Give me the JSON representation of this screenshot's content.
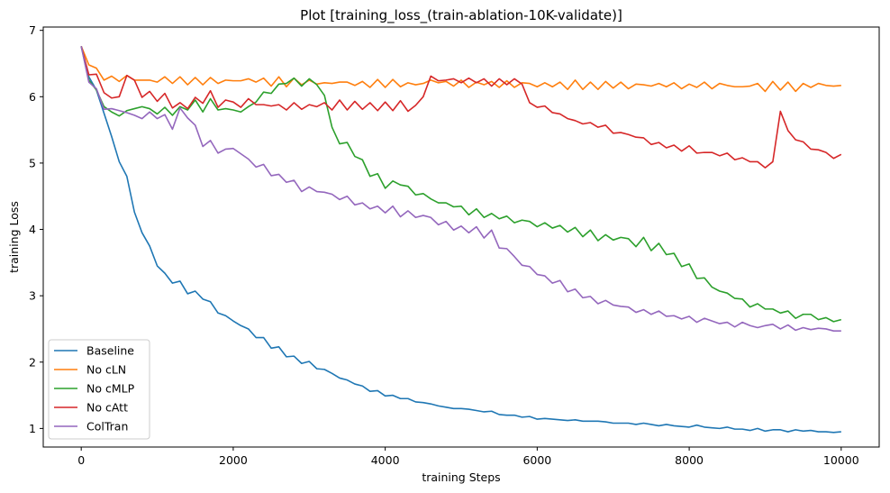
{
  "chart_data": {
    "type": "line",
    "title": "Plot [training_loss_(train-ablation-10K-validate)]",
    "xlabel": "training Steps",
    "ylabel": "training Loss",
    "xlim": [
      -500,
      10500
    ],
    "ylim": [
      0.72,
      7.05
    ],
    "xticks": [
      0,
      2000,
      4000,
      6000,
      8000,
      10000
    ],
    "yticks": [
      1,
      2,
      3,
      4,
      5,
      6,
      7
    ],
    "grid": false,
    "legend": "lower-left",
    "x": [
      0,
      100,
      200,
      300,
      400,
      500,
      600,
      700,
      800,
      900,
      1000,
      1100,
      1200,
      1300,
      1400,
      1500,
      1600,
      1700,
      1800,
      1900,
      2000,
      2100,
      2200,
      2300,
      2400,
      2500,
      2600,
      2700,
      2800,
      2900,
      3000,
      3100,
      3200,
      3300,
      3400,
      3500,
      3600,
      3700,
      3800,
      3900,
      4000,
      4100,
      4200,
      4300,
      4400,
      4500,
      4600,
      4700,
      4800,
      4900,
      5000,
      5100,
      5200,
      5300,
      5400,
      5500,
      5600,
      5700,
      5800,
      5900,
      6000,
      6100,
      6200,
      6300,
      6400,
      6500,
      6600,
      6700,
      6800,
      6900,
      7000,
      7100,
      7200,
      7300,
      7400,
      7500,
      7600,
      7700,
      7800,
      7900,
      8000,
      8100,
      8200,
      8300,
      8400,
      8500,
      8600,
      8700,
      8800,
      8900,
      9000,
      9100,
      9200,
      9300,
      9400,
      9500,
      9600,
      9700,
      9800,
      9900,
      10000
    ],
    "series": [
      {
        "name": "Baseline",
        "color": "#1f77b4",
        "values": [
          6.76,
          6.3,
          6.1,
          5.75,
          5.4,
          5.02,
          4.8,
          4.26,
          3.95,
          3.75,
          3.45,
          3.34,
          3.19,
          3.22,
          3.03,
          3.07,
          2.95,
          2.91,
          2.74,
          2.7,
          2.62,
          2.55,
          2.5,
          2.37,
          2.37,
          2.21,
          2.23,
          2.08,
          2.09,
          1.98,
          2.01,
          1.9,
          1.89,
          1.83,
          1.76,
          1.73,
          1.67,
          1.64,
          1.56,
          1.57,
          1.49,
          1.5,
          1.45,
          1.45,
          1.4,
          1.39,
          1.37,
          1.34,
          1.32,
          1.3,
          1.3,
          1.29,
          1.27,
          1.25,
          1.26,
          1.21,
          1.2,
          1.2,
          1.17,
          1.18,
          1.14,
          1.15,
          1.14,
          1.13,
          1.12,
          1.13,
          1.11,
          1.11,
          1.11,
          1.1,
          1.08,
          1.08,
          1.08,
          1.06,
          1.08,
          1.06,
          1.04,
          1.06,
          1.04,
          1.03,
          1.02,
          1.05,
          1.02,
          1.01,
          1.0,
          1.02,
          0.99,
          0.99,
          0.97,
          1.0,
          0.96,
          0.98,
          0.98,
          0.95,
          0.98,
          0.96,
          0.97,
          0.95,
          0.95,
          0.94,
          0.95
        ]
      },
      {
        "name": "No cLN",
        "color": "#ff7f0e",
        "values": [
          6.76,
          6.48,
          6.43,
          6.25,
          6.31,
          6.23,
          6.32,
          6.25,
          6.25,
          6.25,
          6.22,
          6.3,
          6.2,
          6.3,
          6.18,
          6.29,
          6.18,
          6.29,
          6.2,
          6.25,
          6.24,
          6.24,
          6.27,
          6.22,
          6.28,
          6.16,
          6.3,
          6.15,
          6.28,
          6.18,
          6.25,
          6.19,
          6.21,
          6.2,
          6.22,
          6.22,
          6.17,
          6.23,
          6.14,
          6.26,
          6.14,
          6.26,
          6.15,
          6.21,
          6.18,
          6.2,
          6.25,
          6.21,
          6.23,
          6.16,
          6.25,
          6.14,
          6.22,
          6.18,
          6.23,
          6.14,
          6.24,
          6.14,
          6.21,
          6.2,
          6.15,
          6.21,
          6.15,
          6.22,
          6.11,
          6.25,
          6.11,
          6.22,
          6.11,
          6.23,
          6.13,
          6.22,
          6.12,
          6.19,
          6.18,
          6.16,
          6.2,
          6.15,
          6.21,
          6.12,
          6.19,
          6.14,
          6.22,
          6.12,
          6.2,
          6.17,
          6.15,
          6.15,
          6.16,
          6.2,
          6.08,
          6.23,
          6.1,
          6.22,
          6.08,
          6.2,
          6.14,
          6.2,
          6.17,
          6.16,
          6.17
        ]
      },
      {
        "name": "No cMLP",
        "color": "#2ca02c",
        "values": [
          6.76,
          6.25,
          6.1,
          5.85,
          5.77,
          5.71,
          5.79,
          5.82,
          5.85,
          5.82,
          5.74,
          5.84,
          5.72,
          5.85,
          5.8,
          5.95,
          5.77,
          5.97,
          5.8,
          5.82,
          5.8,
          5.77,
          5.85,
          5.92,
          6.07,
          6.05,
          6.19,
          6.2,
          6.28,
          6.16,
          6.27,
          6.18,
          6.02,
          5.54,
          5.29,
          5.31,
          5.1,
          5.05,
          4.8,
          4.84,
          4.62,
          4.73,
          4.67,
          4.65,
          4.52,
          4.54,
          4.46,
          4.4,
          4.4,
          4.34,
          4.35,
          4.22,
          4.31,
          4.18,
          4.24,
          4.16,
          4.2,
          4.1,
          4.14,
          4.12,
          4.04,
          4.1,
          4.02,
          4.06,
          3.96,
          4.03,
          3.89,
          3.99,
          3.83,
          3.92,
          3.84,
          3.88,
          3.86,
          3.74,
          3.88,
          3.68,
          3.79,
          3.62,
          3.64,
          3.44,
          3.48,
          3.26,
          3.27,
          3.13,
          3.07,
          3.04,
          2.96,
          2.95,
          2.83,
          2.88,
          2.8,
          2.8,
          2.74,
          2.77,
          2.66,
          2.72,
          2.72,
          2.64,
          2.67,
          2.61,
          2.64
        ]
      },
      {
        "name": "No cAtt",
        "color": "#d62728",
        "values": [
          6.76,
          6.33,
          6.34,
          6.06,
          5.98,
          6.0,
          6.32,
          6.25,
          5.99,
          6.08,
          5.93,
          6.05,
          5.83,
          5.91,
          5.82,
          5.99,
          5.9,
          6.09,
          5.84,
          5.95,
          5.92,
          5.84,
          5.97,
          5.88,
          5.88,
          5.86,
          5.88,
          5.8,
          5.91,
          5.81,
          5.88,
          5.85,
          5.91,
          5.8,
          5.95,
          5.8,
          5.93,
          5.81,
          5.91,
          5.79,
          5.92,
          5.79,
          5.94,
          5.78,
          5.87,
          6.0,
          6.31,
          6.24,
          6.25,
          6.27,
          6.21,
          6.28,
          6.21,
          6.27,
          6.16,
          6.27,
          6.18,
          6.27,
          6.19,
          5.91,
          5.84,
          5.86,
          5.76,
          5.74,
          5.67,
          5.64,
          5.59,
          5.61,
          5.54,
          5.57,
          5.45,
          5.46,
          5.43,
          5.39,
          5.38,
          5.28,
          5.31,
          5.23,
          5.27,
          5.18,
          5.26,
          5.15,
          5.16,
          5.16,
          5.11,
          5.15,
          5.05,
          5.08,
          5.02,
          5.02,
          4.93,
          5.02,
          5.78,
          5.49,
          5.35,
          5.32,
          5.21,
          5.2,
          5.16,
          5.07,
          5.13
        ]
      },
      {
        "name": "ColTran",
        "color": "#9467bd",
        "values": [
          6.76,
          6.22,
          6.12,
          5.81,
          5.82,
          5.79,
          5.76,
          5.72,
          5.67,
          5.77,
          5.67,
          5.73,
          5.51,
          5.83,
          5.68,
          5.57,
          5.25,
          5.34,
          5.15,
          5.21,
          5.22,
          5.14,
          5.06,
          4.94,
          4.98,
          4.81,
          4.83,
          4.71,
          4.74,
          4.57,
          4.64,
          4.57,
          4.56,
          4.53,
          4.45,
          4.5,
          4.37,
          4.4,
          4.31,
          4.35,
          4.25,
          4.35,
          4.19,
          4.28,
          4.18,
          4.21,
          4.18,
          4.07,
          4.12,
          3.99,
          4.05,
          3.95,
          4.04,
          3.87,
          3.99,
          3.72,
          3.71,
          3.59,
          3.46,
          3.44,
          3.32,
          3.3,
          3.19,
          3.23,
          3.06,
          3.1,
          2.97,
          2.99,
          2.88,
          2.93,
          2.86,
          2.84,
          2.83,
          2.75,
          2.79,
          2.72,
          2.77,
          2.69,
          2.7,
          2.65,
          2.69,
          2.6,
          2.66,
          2.62,
          2.58,
          2.6,
          2.53,
          2.6,
          2.55,
          2.52,
          2.55,
          2.57,
          2.5,
          2.56,
          2.48,
          2.52,
          2.49,
          2.51,
          2.5,
          2.47,
          2.47
        ]
      }
    ]
  }
}
